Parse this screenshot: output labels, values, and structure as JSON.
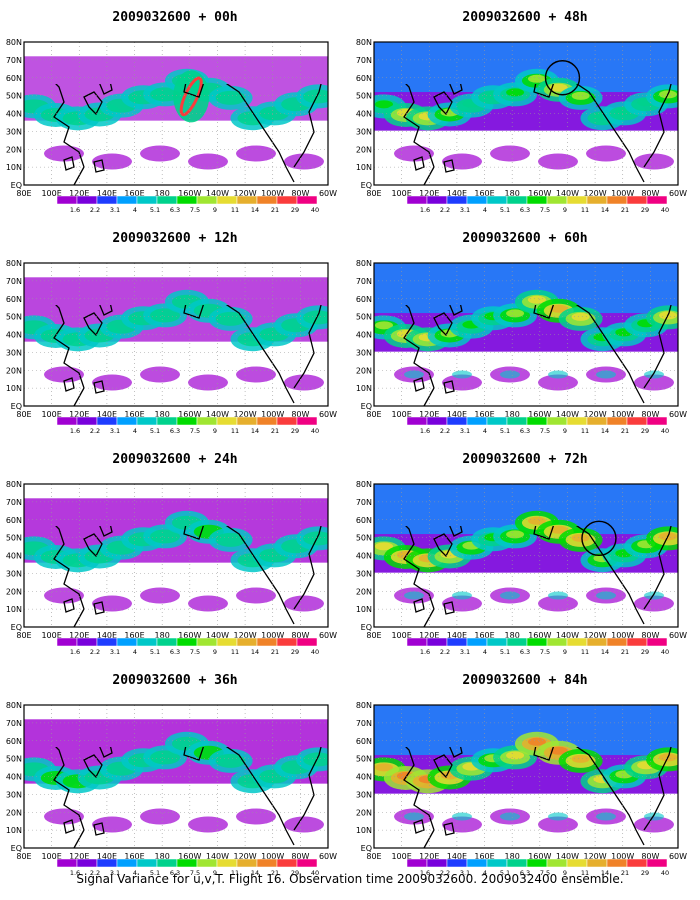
{
  "panels": [
    {
      "title": "2009032600 + 00h",
      "lead": "00h",
      "intensity": 0.25,
      "circle": false
    },
    {
      "title": "2009032600 + 48h",
      "lead": "48h",
      "intensity": 0.6,
      "circle": true
    },
    {
      "title": "2009032600 + 12h",
      "lead": "12h",
      "intensity": 0.35,
      "circle": false
    },
    {
      "title": "2009032600 + 60h",
      "lead": "60h",
      "intensity": 0.7,
      "circle": false
    },
    {
      "title": "2009032600 + 24h",
      "lead": "24h",
      "intensity": 0.45,
      "circle": false
    },
    {
      "title": "2009032600 + 72h",
      "lead": "72h",
      "intensity": 0.8,
      "circle": true
    },
    {
      "title": "2009032600 + 36h",
      "lead": "36h",
      "intensity": 0.5,
      "circle": false
    },
    {
      "title": "2009032600 + 84h",
      "lead": "84h",
      "intensity": 0.9,
      "circle": false
    }
  ],
  "lon_labels": [
    "80E",
    "100E",
    "120E",
    "140E",
    "160E",
    "180",
    "160W",
    "140W",
    "120W",
    "100W",
    "80W",
    "60W"
  ],
  "lat_labels": [
    "EQ",
    "10N",
    "20N",
    "30N",
    "40N",
    "50N",
    "60N",
    "70N",
    "80N"
  ],
  "legend": {
    "labels": [
      "1.6",
      "2.2",
      "3.1",
      "4",
      "5.1",
      "6.3",
      "7.5",
      "9",
      "11",
      "14",
      "21",
      "29",
      "40"
    ],
    "colors": [
      "#a000d2",
      "#7800dc",
      "#1e3cff",
      "#00a0ff",
      "#00c8c8",
      "#00d28c",
      "#00dc00",
      "#a0e632",
      "#e6dc32",
      "#e6af2d",
      "#f08228",
      "#fa3c3c",
      "#f00082"
    ]
  },
  "caption": "Signal Variance for u,v,T. Flight 16. Observation time 2009032600. 2009032400 ensemble."
}
